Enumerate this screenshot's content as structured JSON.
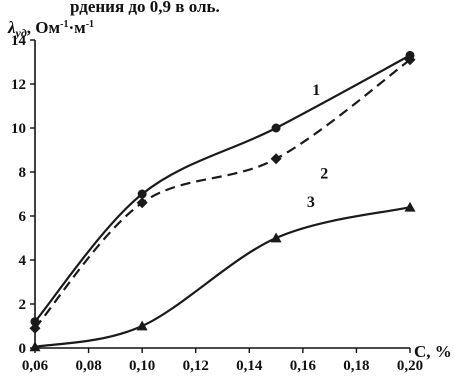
{
  "chart_data": {
    "type": "line",
    "x_ticks": [
      "0,06",
      "0,08",
      "0,10",
      "0,12",
      "0,14",
      "0,16",
      "0,18",
      "0,20"
    ],
    "y_ticks": [
      "0",
      "2",
      "4",
      "6",
      "8",
      "10",
      "12",
      "14"
    ],
    "xlim": [
      0.06,
      0.2
    ],
    "ylim": [
      0,
      14
    ],
    "xlabel": "С, %",
    "ylabel_main": "λ",
    "ylabel_sub": "уд",
    "ylabel_units": ", Ом",
    "ylabel_exp1": "-1",
    "ylabel_mid": "·м",
    "ylabel_exp2": "-1",
    "top_text": "рдения до 0,9 в оль.",
    "grid": false,
    "legend": "none",
    "series": [
      {
        "name": "1",
        "style": "solid",
        "marker": "circle",
        "color": "#1a1a1a",
        "x": [
          0.06,
          0.1,
          0.15,
          0.2
        ],
        "y": [
          1.2,
          7.0,
          10.0,
          13.3
        ]
      },
      {
        "name": "2",
        "style": "dashed",
        "marker": "diamond",
        "color": "#1a1a1a",
        "x": [
          0.06,
          0.1,
          0.15,
          0.2
        ],
        "y": [
          0.9,
          6.6,
          8.6,
          13.1
        ]
      },
      {
        "name": "3",
        "style": "solid",
        "marker": "triangle",
        "color": "#1a1a1a",
        "x": [
          0.06,
          0.1,
          0.15,
          0.2
        ],
        "y": [
          0.05,
          1.0,
          5.0,
          6.4
        ]
      }
    ],
    "series_label_anchor": [
      {
        "x": 0.165,
        "y": 11.5
      },
      {
        "x": 0.168,
        "y": 7.7
      },
      {
        "x": 0.163,
        "y": 6.4
      }
    ]
  }
}
